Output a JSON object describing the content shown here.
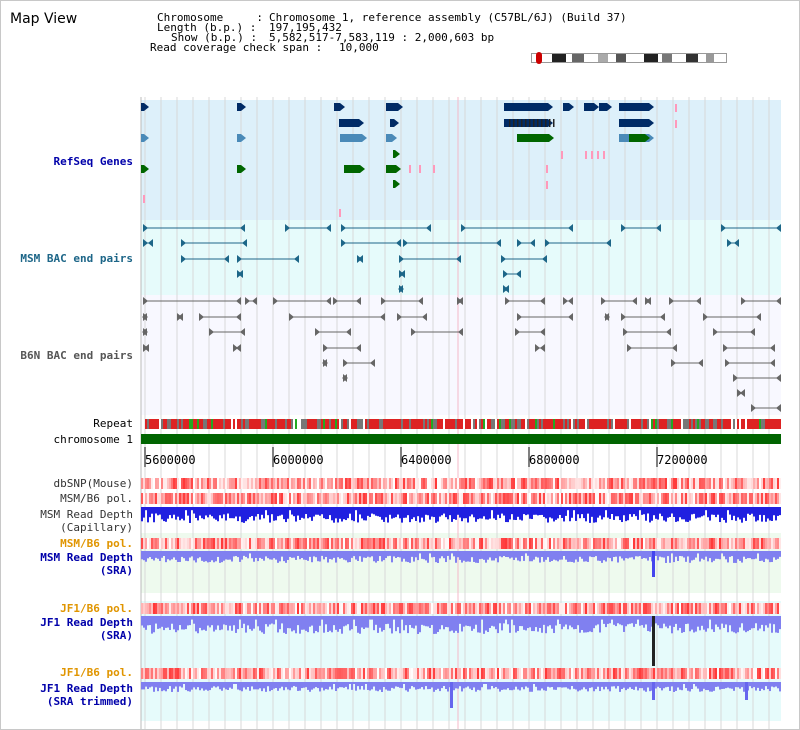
{
  "app": {
    "title": "Map View"
  },
  "info": {
    "chromosome_label": "Chromosome     :",
    "chromosome_value": "Chromosome 1, reference assembly (C57BL/6J) (Build 37)",
    "length_label": "Length (b.p.) :",
    "length_value": "197,195,432",
    "show_label": "Show (b.p.) :",
    "show_value": "5,582,517-7,583,119 : 2,000,603 bp",
    "coverage_label": "Read coverage check span :",
    "coverage_value": "10,000"
  },
  "tracks": {
    "refseq": "RefSeq Genes",
    "msm_bac": "MSM BAC end pairs",
    "b6n_bac": "B6N BAC end pairs",
    "repeat": "Repeat",
    "chromosome": "chromosome 1",
    "dbsnp": "dbSNP(Mouse)",
    "msm_b6_pol_1": "MSM/B6 pol.",
    "msm_read_depth_cap_1": "MSM Read Depth",
    "msm_read_depth_cap_2": "(Capillary)",
    "msm_b6_pol_2": "MSM/B6 pol.",
    "msm_read_depth_sra_1": "MSM Read Depth",
    "msm_read_depth_sra_2": "(SRA)",
    "jf1_b6_pol_1": "JF1/B6 pol.",
    "jf1_read_depth_sra_1": "JF1 Read Depth",
    "jf1_read_depth_sra_2": "(SRA)",
    "jf1_b6_pol_2": "JF1/B6 pol.",
    "jf1_read_depth_trim_1": "JF1 Read Depth",
    "jf1_read_depth_trim_2": "(SRA trimmed)"
  },
  "axis": {
    "ticks": [
      "5600000",
      "6000000",
      "6400000",
      "6800000",
      "7200000"
    ]
  },
  "colors": {
    "refseq_bg": "#ddf0fa",
    "msm_bg": "#e6fbfb",
    "b6n_bg": "#f8f8ff",
    "chromosome": "#006400",
    "depth_blue": "#2020e0",
    "depth_lightblue": "#8080f0"
  }
}
